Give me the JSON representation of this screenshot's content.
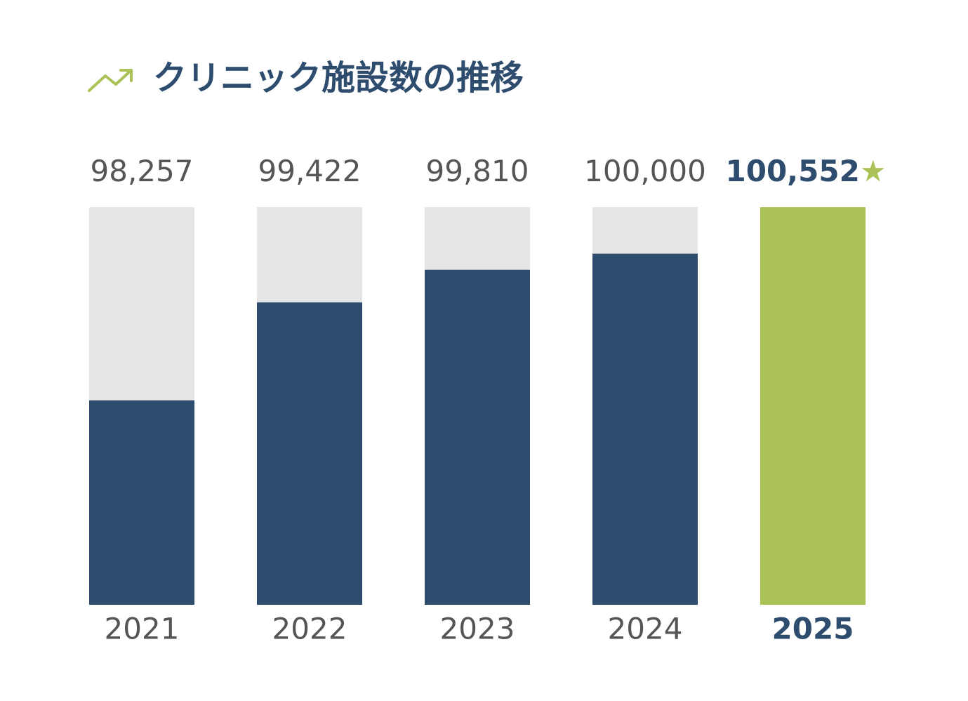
{
  "chart_data": {
    "type": "bar",
    "title": "クリニック施設数の推移",
    "categories": [
      "2021",
      "2022",
      "2023",
      "2024",
      "2025"
    ],
    "values": [
      98257,
      99422,
      99810,
      100000,
      100552
    ],
    "value_labels": [
      "98,257",
      "99,422",
      "99,810",
      "100,000",
      "100,552"
    ],
    "colors": [
      "#2e4d6e",
      "#2e4d6e",
      "#2e4d6e",
      "#2e4d6e",
      "#abc256"
    ],
    "highlight_category": "2025",
    "highlight_marker": "★",
    "ylim": [
      95830,
      100552
    ]
  }
}
